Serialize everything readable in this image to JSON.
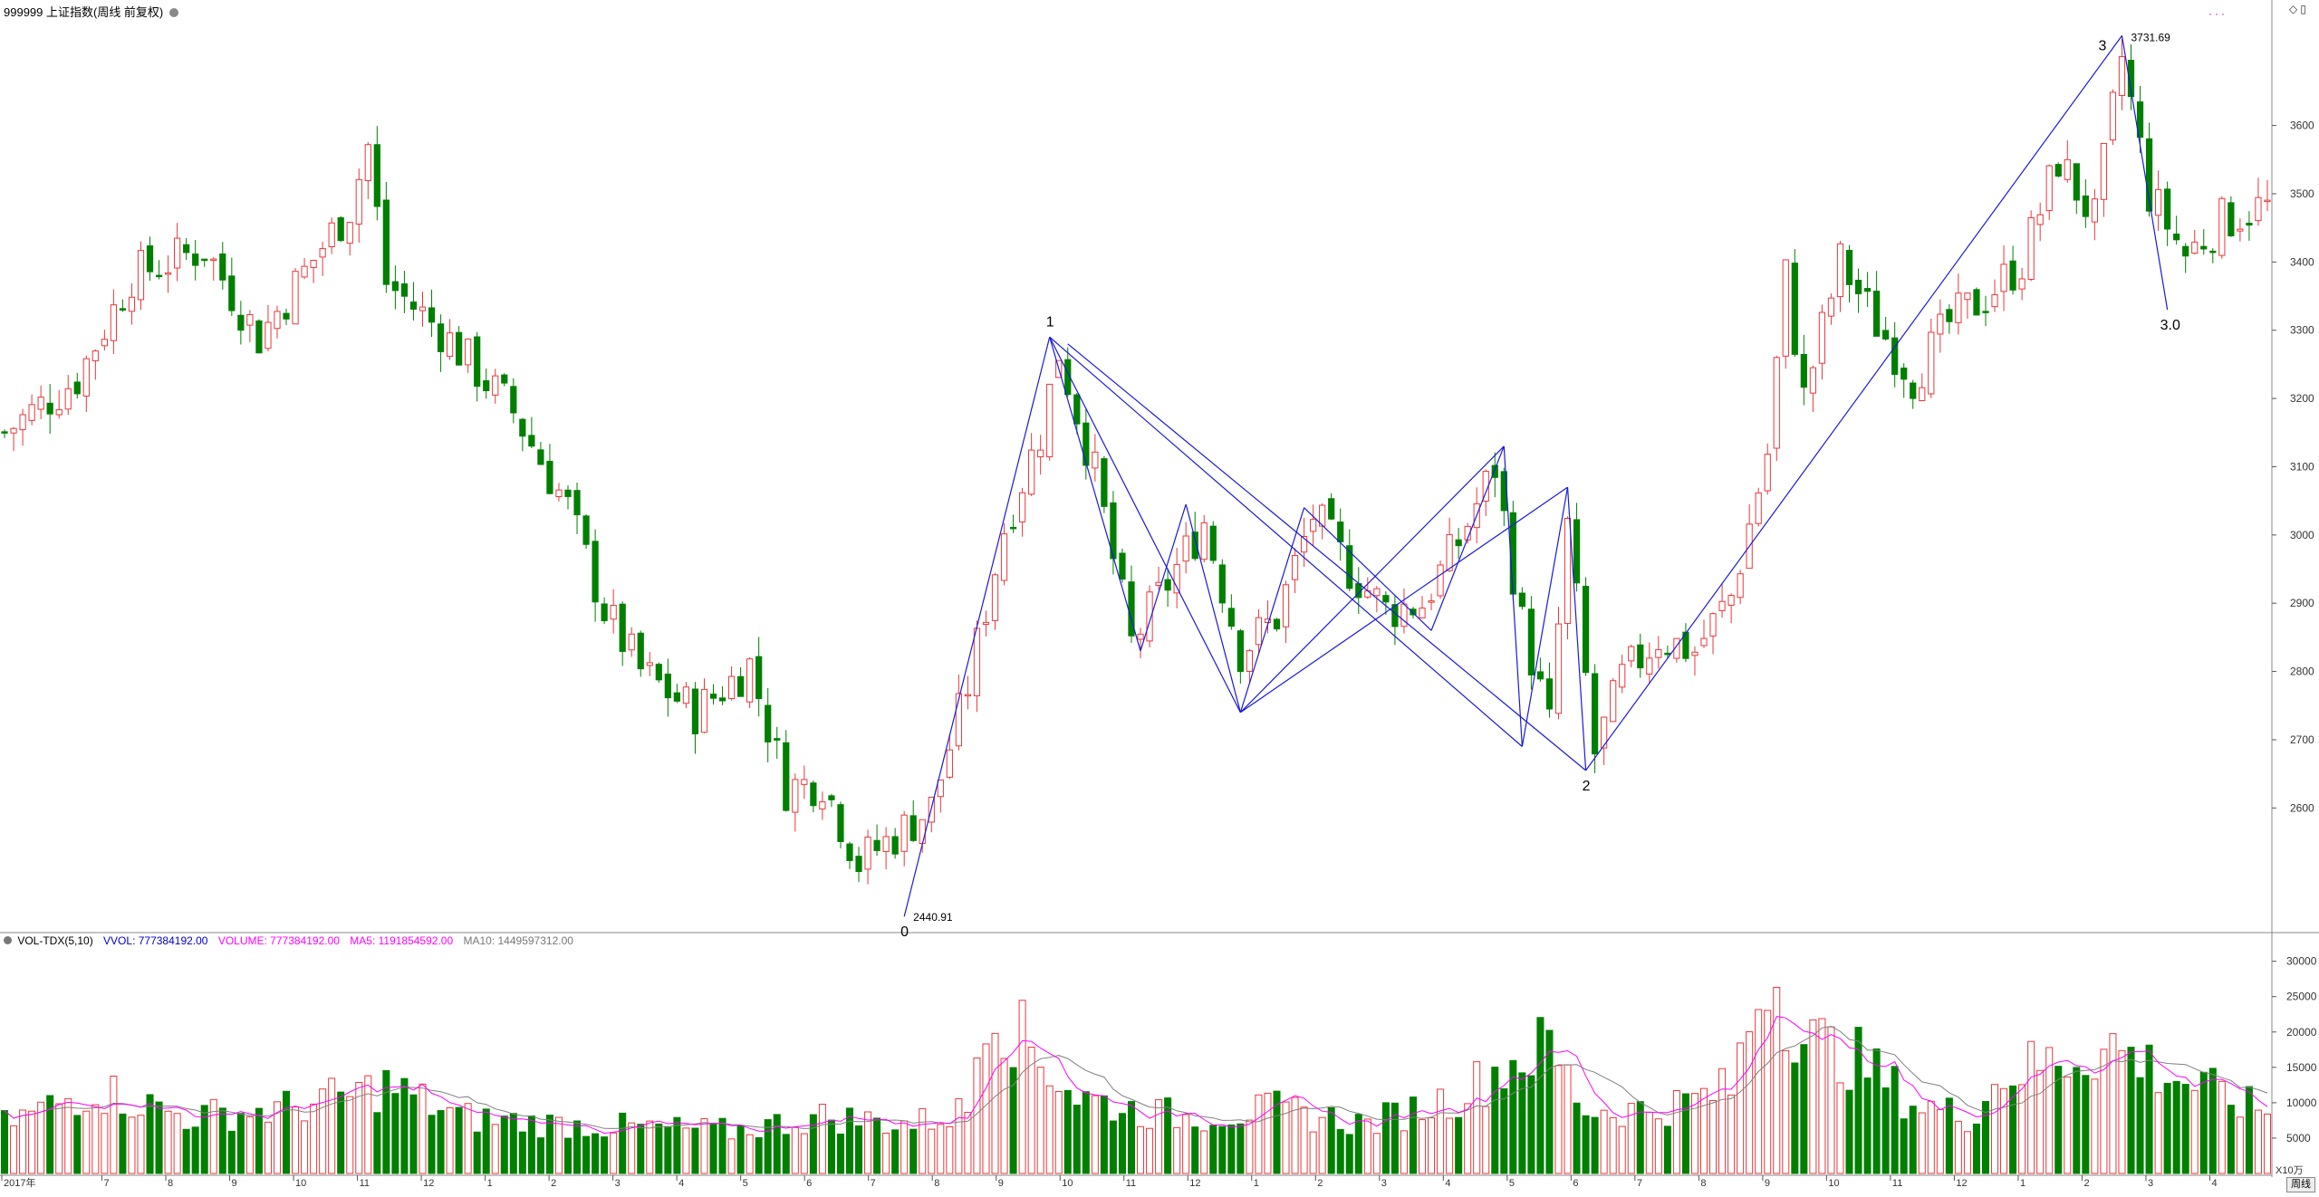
{
  "header": {
    "title": "999999 上证指数(周线 前复权)"
  },
  "volume_header": {
    "indicator": "VOL-TDX(5,10)",
    "vvol": "VVOL: 777384192.00",
    "volume": "VOLUME: 777384192.00",
    "ma5": "MA5: 1191854592.00",
    "ma10": "MA10: 1449597312.00"
  },
  "colors": {
    "up": "#e8383b",
    "down": "#007f00",
    "wave": "#1a1adb",
    "ma5": "#ff00ff",
    "ma10": "#808080",
    "axis": "#555555"
  },
  "unit_label": "X10万",
  "period_tab": "周线",
  "toolbar_icons": [
    "diamond-icon",
    "panel-icon"
  ],
  "chart_data": [
    {
      "type": "candlestick",
      "title": "999999 上证指数(周线 前复权)",
      "ylim": [
        2420,
        3760
      ],
      "yticks": [
        2600,
        2700,
        2800,
        2900,
        3000,
        3100,
        3200,
        3300,
        3400,
        3500,
        3600
      ],
      "x_ticks": [
        "2017年",
        "7",
        "8",
        "9",
        "10",
        "11",
        "12",
        "1",
        "2",
        "3",
        "4",
        "5",
        "6",
        "7",
        "8",
        "9",
        "10",
        "11",
        "12",
        "1",
        "2",
        "3",
        "4",
        "5",
        "6",
        "7",
        "8",
        "9",
        "10",
        "11",
        "12",
        "1",
        "2",
        "3",
        "4"
      ],
      "anchors": [
        [
          0,
          3150
        ],
        [
          8,
          3230
        ],
        [
          14,
          3380
        ],
        [
          22,
          3420
        ],
        [
          28,
          3290
        ],
        [
          38,
          3480
        ],
        [
          40,
          3570
        ],
        [
          42,
          3370
        ],
        [
          48,
          3300
        ],
        [
          56,
          3180
        ],
        [
          62,
          3040
        ],
        [
          66,
          2890
        ],
        [
          70,
          2800
        ],
        [
          76,
          2740
        ],
        [
          82,
          2810
        ],
        [
          86,
          2630
        ],
        [
          90,
          2640
        ],
        [
          94,
          2520
        ],
        [
          98,
          2560
        ],
        [
          102,
          2600
        ],
        [
          106,
          2780
        ],
        [
          110,
          3010
        ],
        [
          114,
          3150
        ],
        [
          116,
          3270
        ],
        [
          120,
          3090
        ],
        [
          124,
          2840
        ],
        [
          128,
          2930
        ],
        [
          132,
          3020
        ],
        [
          136,
          2830
        ],
        [
          140,
          2880
        ],
        [
          144,
          3030
        ],
        [
          148,
          2950
        ],
        [
          152,
          2890
        ],
        [
          156,
          2900
        ],
        [
          160,
          2990
        ],
        [
          164,
          3100
        ],
        [
          167,
          2870
        ],
        [
          170,
          2720
        ],
        [
          172,
          3010
        ],
        [
          175,
          2680
        ],
        [
          178,
          2790
        ],
        [
          182,
          2850
        ],
        [
          186,
          2830
        ],
        [
          190,
          2910
        ],
        [
          194,
          3120
        ],
        [
          196,
          3380
        ],
        [
          198,
          3200
        ],
        [
          202,
          3400
        ],
        [
          206,
          3310
        ],
        [
          210,
          3230
        ],
        [
          214,
          3310
        ],
        [
          218,
          3350
        ],
        [
          222,
          3400
        ],
        [
          226,
          3550
        ],
        [
          230,
          3460
        ],
        [
          233,
          3700
        ],
        [
          236,
          3500
        ],
        [
          240,
          3410
        ],
        [
          244,
          3460
        ],
        [
          248,
          3480
        ]
      ],
      "annotations": [
        {
          "text": "1"
        },
        {
          "text": "0"
        },
        {
          "text": "2440.91"
        },
        {
          "text": "2"
        },
        {
          "text": "3"
        },
        {
          "text": "3731.69"
        },
        {
          "text": "3.0"
        }
      ],
      "wave_lines": [
        [
          [
            99,
            2440.91
          ],
          [
            115,
            3290
          ]
        ],
        [
          [
            115,
            3290
          ],
          [
            167,
            2690
          ]
        ],
        [
          [
            115,
            3290
          ],
          [
            136,
            2740
          ]
        ],
        [
          [
            115,
            3290
          ],
          [
            125,
            2830
          ]
        ],
        [
          [
            125,
            2830
          ],
          [
            130,
            3045
          ]
        ],
        [
          [
            130,
            3045
          ],
          [
            136,
            2740
          ]
        ],
        [
          [
            136,
            2740
          ],
          [
            165,
            3130
          ]
        ],
        [
          [
            136,
            2740
          ],
          [
            172,
            3070
          ]
        ],
        [
          [
            136,
            2740
          ],
          [
            143,
            3040
          ]
        ],
        [
          [
            143,
            3040
          ],
          [
            157,
            2860
          ]
        ],
        [
          [
            157,
            2860
          ],
          [
            165,
            3130
          ]
        ],
        [
          [
            117,
            3280
          ],
          [
            174,
            2655
          ]
        ],
        [
          [
            165,
            3130
          ],
          [
            167,
            2690
          ]
        ],
        [
          [
            167,
            2690
          ],
          [
            172,
            3070
          ]
        ],
        [
          [
            172,
            3070
          ],
          [
            174,
            2655
          ]
        ],
        [
          [
            174,
            2655
          ],
          [
            233,
            3731.69
          ]
        ],
        [
          [
            233,
            3731.69
          ],
          [
            238,
            3330
          ]
        ]
      ],
      "wave_points": [
        {
          "label": "0",
          "bar": 99,
          "value": 2440.91
        },
        {
          "label": "1",
          "bar": 115,
          "value": 3290
        },
        {
          "label": "2",
          "bar": 174,
          "value": 2655
        },
        {
          "label": "3",
          "bar": 233,
          "value": 3731.69
        },
        {
          "label": "3.0",
          "bar": 238,
          "value": 3330
        }
      ]
    },
    {
      "type": "bar",
      "title": "VOL-TDX(5,10)",
      "ylim": [
        0,
        32000
      ],
      "yticks": [
        5000,
        10000,
        15000,
        20000,
        25000,
        30000
      ],
      "unit": "X10万",
      "anchors": [
        [
          0,
          7000
        ],
        [
          10,
          12000
        ],
        [
          20,
          8000
        ],
        [
          30,
          9000
        ],
        [
          38,
          11000
        ],
        [
          42,
          12500
        ],
        [
          50,
          8000
        ],
        [
          60,
          7000
        ],
        [
          70,
          6500
        ],
        [
          80,
          6000
        ],
        [
          90,
          8000
        ],
        [
          100,
          7000
        ],
        [
          106,
          9000
        ],
        [
          108,
          26000
        ],
        [
          112,
          19000
        ],
        [
          118,
          11000
        ],
        [
          124,
          9000
        ],
        [
          130,
          8000
        ],
        [
          140,
          9000
        ],
        [
          150,
          7000
        ],
        [
          160,
          11000
        ],
        [
          166,
          16000
        ],
        [
          170,
          18000
        ],
        [
          174,
          9000
        ],
        [
          182,
          9000
        ],
        [
          190,
          12000
        ],
        [
          194,
          30000
        ],
        [
          198,
          19000
        ],
        [
          204,
          16000
        ],
        [
          210,
          10000
        ],
        [
          216,
          8000
        ],
        [
          220,
          14000
        ],
        [
          226,
          16000
        ],
        [
          232,
          18000
        ],
        [
          238,
          14000
        ],
        [
          248,
          9000
        ]
      ],
      "ma5_color": "#ff00ff",
      "ma10_color": "#808080"
    }
  ]
}
